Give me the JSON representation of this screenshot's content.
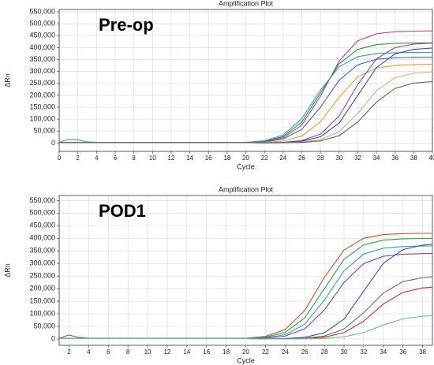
{
  "chart_data": [
    {
      "type": "line",
      "title": "Amplification Plot",
      "annotation": "Pre-op",
      "x_label": "Cycle",
      "y_label": "ΔRn",
      "grid": true,
      "xlim": [
        0,
        40
      ],
      "xticks": [
        0,
        2,
        4,
        6,
        8,
        10,
        12,
        14,
        16,
        18,
        20,
        22,
        24,
        26,
        28,
        30,
        32,
        34,
        36,
        38,
        40
      ],
      "ylim": [
        -35000,
        560000
      ],
      "yticks": [
        0,
        {
          "value": 50000,
          "label": "50,000"
        },
        {
          "value": 100000,
          "label": "100,000"
        },
        {
          "value": 150000,
          "label": "150,000"
        },
        {
          "value": 200000,
          "label": "200,000"
        },
        {
          "value": 250000,
          "label": "250,000"
        },
        {
          "value": 300000,
          "label": "300,000"
        },
        {
          "value": 350000,
          "label": "350,000"
        },
        {
          "value": 400000,
          "label": "400,000"
        },
        {
          "value": 450000,
          "label": "450,000"
        },
        {
          "value": 500000,
          "label": "500,000"
        },
        {
          "value": 550000,
          "label": "550,000"
        }
      ],
      "x": [
        0,
        1,
        2,
        3,
        4,
        8,
        12,
        16,
        20,
        22,
        24,
        26,
        28,
        30,
        32,
        34,
        36,
        38,
        40
      ],
      "series": [
        {
          "color": "#c040a0",
          "values": [
            3000,
            3000,
            3000,
            3000,
            3000,
            2000,
            2000,
            2000,
            3000,
            6110,
            22090,
            74730,
            195990,
            343570,
            428640,
            458250,
            466710,
            469000,
            470000
          ]
        },
        {
          "color": "#2a8a3a",
          "values": [
            2000,
            2000,
            2000,
            2000,
            2000,
            2000,
            2000,
            2000,
            3000,
            7560,
            27300,
            87780,
            210000,
            332220,
            392700,
            412440,
            417900,
            419200,
            420000
          ]
        },
        {
          "color": "#30a0c0",
          "values": [
            3000,
            15000,
            14000,
            5000,
            3000,
            2000,
            2000,
            2000,
            3000,
            9500,
            33440,
            102220,
            221540,
            319580,
            362140,
            375060,
            378500,
            379500,
            380000
          ]
        },
        {
          "color": "#4a60c0",
          "values": [
            2000,
            2000,
            2000,
            2000,
            2000,
            2000,
            2000,
            2000,
            2000,
            4680,
            16920,
            57240,
            150120,
            263160,
            328320,
            351000,
            357480,
            359300,
            360000
          ]
        },
        {
          "color": "#e0a030",
          "values": [
            2000,
            2000,
            2000,
            2000,
            2000,
            2000,
            2000,
            2000,
            2000,
            2210,
            8250,
            29040,
            88770,
            192390,
            277530,
            314490,
            325710,
            329000,
            330000
          ]
        },
        {
          "color": "#8050b0",
          "values": [
            2000,
            2000,
            2000,
            2000,
            2000,
            2000,
            2000,
            2000,
            2000,
            700,
            2810,
            10500,
            36960,
            112980,
            244860,
            353220,
            400260,
            414540,
            418700
          ]
        },
        {
          "color": "#3050a0",
          "values": [
            2000,
            2000,
            2000,
            2000,
            2000,
            2000,
            2000,
            2000,
            2000,
            500,
            1920,
            7200,
            26000,
            83600,
            200000,
            316400,
            374000,
            392800,
            398000
          ]
        },
        {
          "color": "#d0b080",
          "values": [
            2000,
            2000,
            2000,
            2000,
            2000,
            2000,
            2000,
            2000,
            2000,
            300,
            1050,
            3900,
            14100,
            47700,
            125100,
            219300,
            273600,
            292500,
            297900
          ]
        },
        {
          "color": "#606060",
          "values": [
            2000,
            2000,
            2000,
            2000,
            2000,
            2000,
            2000,
            2000,
            2000,
            300,
            1000,
            2420,
            8840,
            30940,
            88140,
            171860,
            229060,
            251160,
            257660
          ]
        }
      ]
    },
    {
      "type": "line",
      "title": "Amplification Plot",
      "annotation": "POD1",
      "x_label": "Cycle",
      "y_label": "ΔRn",
      "grid": true,
      "xlim": [
        1,
        39
      ],
      "xticks": [
        2,
        4,
        6,
        8,
        10,
        12,
        14,
        16,
        18,
        20,
        22,
        24,
        26,
        28,
        30,
        32,
        34,
        36,
        38
      ],
      "ylim": [
        -25000,
        570000
      ],
      "yticks": [
        0,
        {
          "value": 50000,
          "label": "50,000"
        },
        {
          "value": 100000,
          "label": "100,000"
        },
        {
          "value": 150000,
          "label": "150,000"
        },
        {
          "value": 200000,
          "label": "200,000"
        },
        {
          "value": 250000,
          "label": "250,000"
        },
        {
          "value": 300000,
          "label": "300,000"
        },
        {
          "value": 350000,
          "label": "350,000"
        },
        {
          "value": 400000,
          "label": "400,000"
        },
        {
          "value": 450000,
          "label": "450,000"
        },
        {
          "value": 500000,
          "label": "500,000"
        },
        {
          "value": 550000,
          "label": "550,000"
        }
      ],
      "x": [
        1,
        2,
        3,
        4,
        8,
        12,
        16,
        20,
        22,
        24,
        26,
        28,
        30,
        32,
        34,
        36,
        38,
        39
      ],
      "series": [
        {
          "color": "#d05030",
          "values": [
            2000,
            2000,
            2000,
            2000,
            2000,
            2000,
            2000,
            3000,
            10500,
            36960,
            112980,
            244860,
            353220,
            400260,
            414540,
            418700,
            419600,
            419800
          ]
        },
        {
          "color": "#30a040",
          "values": [
            2000,
            2000,
            2000,
            2000,
            2000,
            2000,
            2000,
            3000,
            7200,
            26000,
            83600,
            200000,
            316400,
            374000,
            392800,
            398000,
            399400,
            399700
          ]
        },
        {
          "color": "#30a0c0",
          "values": [
            2000,
            2000,
            2000,
            2000,
            2000,
            2000,
            2000,
            2000,
            4810,
            17390,
            58830,
            154290,
            270470,
            337440,
            360750,
            367410,
            369300,
            369600
          ]
        },
        {
          "color": "#8040b0",
          "values": [
            3000,
            16000,
            6000,
            3000,
            2000,
            2000,
            2000,
            2000,
            3160,
            11560,
            40460,
            115260,
            224740,
            299540,
            328440,
            336940,
            339300,
            339600
          ]
        },
        {
          "color": "#3050c0",
          "values": [
            2000,
            2000,
            2000,
            2000,
            2000,
            2000,
            2000,
            2000,
            500,
            1820,
            6840,
            24700,
            79420,
            190000,
            300580,
            355300,
            373160,
            376580
          ]
        },
        {
          "color": "#707070",
          "values": [
            2000,
            2000,
            2000,
            2000,
            2000,
            2000,
            2000,
            2000,
            300,
            880,
            3250,
            11750,
            39750,
            104250,
            182750,
            228000,
            243750,
            246750
          ]
        },
        {
          "color": "#c03030",
          "values": [
            2000,
            2000,
            2000,
            2000,
            2000,
            2000,
            2000,
            2000,
            200,
            500,
            1950,
            7140,
            24990,
            71190,
            138810,
            185010,
            202860,
            206220
          ]
        },
        {
          "color": "#70c080",
          "values": [
            2000,
            2000,
            2000,
            2000,
            2000,
            2000,
            2000,
            2000,
            100,
            170,
            640,
            2380,
            8360,
            25560,
            55390,
            79900,
            90540,
            92630
          ]
        }
      ]
    }
  ]
}
